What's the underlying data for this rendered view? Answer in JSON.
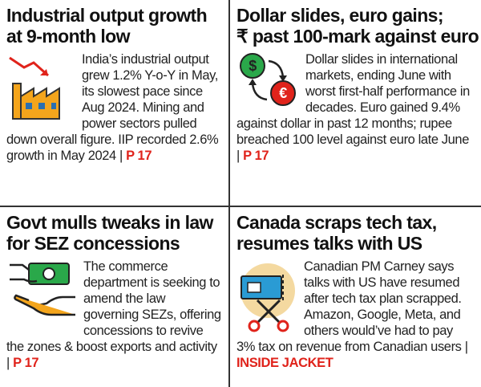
{
  "panels": [
    {
      "headline": [
        "Industrial output growth",
        "at 9-month low"
      ],
      "body": "India’s industrial output grew 1.2% Y-o-Y in May, its slowest pace since Aug 2024. Mining and power sectors pulled down overall figure. IIP recorded 2.6% growth in May 2024 |",
      "ref": "P 17"
    },
    {
      "headline": [
        "Dollar slides, euro gains;",
        "₹ past 100-mark against euro"
      ],
      "body": "Dollar slides in international markets, ending June with worst first-half performance in decades. Euro gained 9.4% against dollar in past 12 months; rupee breached 100 level against euro late June |",
      "ref": "P 17"
    },
    {
      "headline": [
        "Govt mulls tweaks in law",
        "for SEZ concessions"
      ],
      "body": "The commerce department is seeking to amend the law governing SEZs, offering concessions to revive the zones & boost exports and activity |",
      "ref": "P 17"
    },
    {
      "headline": [
        "Canada scraps tech tax,",
        "resumes talks with US"
      ],
      "body": "Canadian PM Carney says talks with US have resumed after tech tax plan scrapped. Amazon, Google, Meta, and others would’ve had to pay 3% tax on revenue from Canadian users |",
      "ref": "INSIDE JACKET"
    }
  ]
}
